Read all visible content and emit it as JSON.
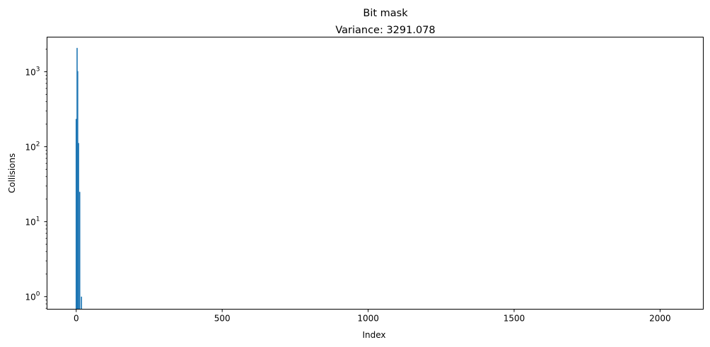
{
  "chart_data": {
    "type": "bar",
    "title": "Bit mask",
    "subtitle": "Variance: 3291.078",
    "xlabel": "Index",
    "ylabel": "Collisions",
    "yscale": "log",
    "xlim": [
      -100,
      2148
    ],
    "ylim": [
      0.68,
      2900
    ],
    "x_ticks": [
      {
        "value": 0,
        "label": "0"
      },
      {
        "value": 500,
        "label": "500"
      },
      {
        "value": 1000,
        "label": "1000"
      },
      {
        "value": 1500,
        "label": "1500"
      },
      {
        "value": 2000,
        "label": "2000"
      }
    ],
    "y_ticks": [
      {
        "value": 1,
        "base": "10",
        "exp": "0"
      },
      {
        "value": 10,
        "base": "10",
        "exp": "1"
      },
      {
        "value": 100,
        "base": "10",
        "exp": "2"
      },
      {
        "value": 1000,
        "base": "10",
        "exp": "3"
      }
    ],
    "grid": false,
    "bar_color": "#1f77b4",
    "x": [
      0,
      3,
      5,
      8,
      12,
      18
    ],
    "values": [
      235,
      2080,
      1020,
      112,
      25,
      1
    ]
  }
}
